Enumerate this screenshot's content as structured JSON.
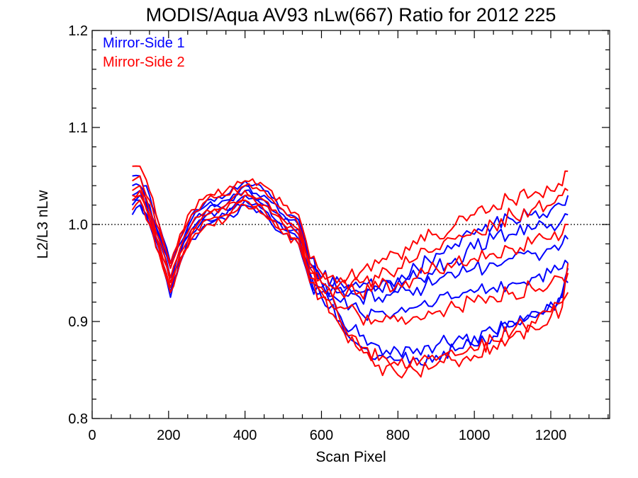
{
  "chart_data": {
    "type": "line",
    "title": "MODIS/Aqua AV93 nLw(667) Ratio for 2012 225",
    "xlabel": "Scan Pixel",
    "ylabel": "L2/L3 nLw",
    "xlim": [
      0,
      1354
    ],
    "ylim": [
      0.8,
      1.2
    ],
    "xticks": [
      0,
      200,
      400,
      600,
      800,
      1000,
      1200
    ],
    "xtick_labels": [
      "0",
      "200",
      "400",
      "600",
      "800",
      "1000",
      "1200"
    ],
    "yticks": [
      0.8,
      0.9,
      1.0,
      1.1,
      1.2
    ],
    "ytick_labels": [
      "0.8",
      "0.9",
      "1.0",
      "1.1",
      "1.2"
    ],
    "reference_line": {
      "y": 1.0,
      "style": "dotted",
      "color": "#000000"
    },
    "legend": {
      "placement": "top-left",
      "entries": [
        {
          "label": "Mirror-Side 1",
          "color": "#0000ff"
        },
        {
          "label": "Mirror-Side 2",
          "color": "#ff0000"
        }
      ]
    },
    "x": [
      105,
      125,
      150,
      175,
      205,
      230,
      260,
      300,
      350,
      400,
      450,
      500,
      540,
      570,
      600,
      650,
      700,
      750,
      800,
      850,
      900,
      950,
      1000,
      1050,
      1100,
      1150,
      1200,
      1230,
      1245
    ],
    "series": [
      {
        "name": "Mirror-Side 1",
        "color": "#0000ff",
        "values": [
          1.04,
          1.04,
          1.02,
          0.99,
          0.955,
          0.98,
          1.005,
          1.02,
          1.025,
          1.04,
          1.03,
          1.01,
          1.0,
          0.96,
          0.945,
          0.94,
          0.935,
          0.935,
          0.94,
          0.945,
          0.955,
          0.965,
          0.975,
          0.985,
          0.99,
          0.995,
          1.0,
          1.005,
          1.01
        ]
      },
      {
        "name": "Mirror-Side 1",
        "color": "#0000ff",
        "values": [
          1.05,
          1.05,
          1.03,
          1.0,
          0.96,
          0.985,
          1.01,
          1.025,
          1.03,
          1.045,
          1.035,
          1.015,
          1.005,
          0.965,
          0.945,
          0.935,
          0.93,
          0.935,
          0.945,
          0.955,
          0.97,
          0.98,
          0.99,
          1.0,
          1.005,
          1.01,
          1.015,
          1.02,
          1.03
        ]
      },
      {
        "name": "Mirror-Side 1",
        "color": "#0000ff",
        "values": [
          1.03,
          1.035,
          1.015,
          0.985,
          0.945,
          0.975,
          1.0,
          1.015,
          1.02,
          1.035,
          1.025,
          1.005,
          0.995,
          0.955,
          0.94,
          0.93,
          0.925,
          0.925,
          0.93,
          0.935,
          0.94,
          0.945,
          0.955,
          0.96,
          0.965,
          0.97,
          0.975,
          0.98,
          0.985
        ]
      },
      {
        "name": "Mirror-Side 1",
        "color": "#0000ff",
        "values": [
          1.025,
          1.03,
          1.01,
          0.98,
          0.94,
          0.97,
          0.995,
          1.01,
          1.015,
          1.03,
          1.02,
          1.0,
          0.99,
          0.95,
          0.935,
          0.92,
          0.91,
          0.91,
          0.91,
          0.915,
          0.92,
          0.925,
          0.93,
          0.935,
          0.94,
          0.945,
          0.95,
          0.955,
          0.96
        ]
      },
      {
        "name": "Mirror-Side 1",
        "color": "#0000ff",
        "values": [
          1.02,
          1.025,
          1.005,
          0.975,
          0.93,
          0.965,
          0.99,
          1.005,
          1.01,
          1.025,
          1.015,
          0.995,
          0.985,
          0.945,
          0.93,
          0.905,
          0.885,
          0.875,
          0.87,
          0.872,
          0.875,
          0.88,
          0.885,
          0.89,
          0.9,
          0.91,
          0.92,
          0.93,
          0.94
        ]
      },
      {
        "name": "Mirror-Side 1",
        "color": "#0000ff",
        "values": [
          1.01,
          1.02,
          1.0,
          0.97,
          0.925,
          0.96,
          0.985,
          1.0,
          1.005,
          1.02,
          1.01,
          0.99,
          0.98,
          0.94,
          0.925,
          0.9,
          0.875,
          0.865,
          0.86,
          0.862,
          0.865,
          0.87,
          0.875,
          0.885,
          0.895,
          0.905,
          0.915,
          0.925,
          0.955
        ]
      },
      {
        "name": "Mirror-Side 2",
        "color": "#ff0000",
        "values": [
          1.045,
          1.05,
          1.025,
          0.995,
          0.955,
          0.985,
          1.01,
          1.025,
          1.03,
          1.04,
          1.035,
          1.015,
          1.0,
          0.96,
          0.945,
          0.94,
          0.94,
          0.945,
          0.955,
          0.965,
          0.975,
          0.985,
          0.995,
          1.0,
          1.01,
          1.015,
          1.02,
          1.03,
          1.035
        ]
      },
      {
        "name": "Mirror-Side 2",
        "color": "#ff0000",
        "values": [
          1.06,
          1.06,
          1.035,
          1.0,
          0.96,
          0.99,
          1.015,
          1.03,
          1.035,
          1.045,
          1.04,
          1.02,
          1.01,
          0.965,
          0.95,
          0.945,
          0.95,
          0.96,
          0.97,
          0.98,
          0.99,
          1.0,
          1.01,
          1.02,
          1.025,
          1.03,
          1.035,
          1.04,
          1.055
        ]
      },
      {
        "name": "Mirror-Side 2",
        "color": "#ff0000",
        "values": [
          1.035,
          1.04,
          1.015,
          0.985,
          0.945,
          0.975,
          1.0,
          1.015,
          1.02,
          1.035,
          1.025,
          1.005,
          0.995,
          0.955,
          0.94,
          0.93,
          0.93,
          0.935,
          0.94,
          0.945,
          0.955,
          0.96,
          0.965,
          0.97,
          0.975,
          0.98,
          0.985,
          0.99,
          1.0
        ]
      },
      {
        "name": "Mirror-Side 2",
        "color": "#ff0000",
        "values": [
          1.03,
          1.035,
          1.01,
          0.98,
          0.94,
          0.97,
          0.995,
          1.01,
          1.015,
          1.03,
          1.02,
          1.0,
          0.99,
          0.95,
          0.935,
          0.915,
          0.905,
          0.9,
          0.9,
          0.905,
          0.91,
          0.915,
          0.92,
          0.925,
          0.93,
          0.935,
          0.94,
          0.945,
          0.95
        ]
      },
      {
        "name": "Mirror-Side 2",
        "color": "#ff0000",
        "values": [
          1.025,
          1.03,
          1.005,
          0.975,
          0.935,
          0.965,
          0.99,
          1.005,
          1.01,
          1.025,
          1.015,
          0.995,
          0.985,
          0.945,
          0.93,
          0.9,
          0.875,
          0.86,
          0.855,
          0.855,
          0.86,
          0.865,
          0.87,
          0.88,
          0.89,
          0.9,
          0.91,
          0.92,
          0.93
        ]
      },
      {
        "name": "Mirror-Side 2",
        "color": "#ff0000",
        "values": [
          1.015,
          1.025,
          1.0,
          0.97,
          0.93,
          0.96,
          0.985,
          1.0,
          1.005,
          1.02,
          1.01,
          0.99,
          0.98,
          0.94,
          0.925,
          0.895,
          0.87,
          0.855,
          0.845,
          0.848,
          0.855,
          0.86,
          0.865,
          0.875,
          0.885,
          0.895,
          0.905,
          0.915,
          0.96
        ]
      }
    ]
  }
}
